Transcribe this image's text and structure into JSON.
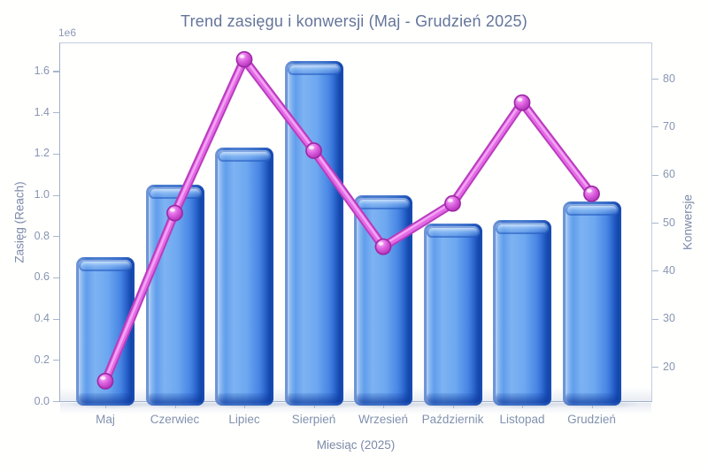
{
  "title": "Trend zasięgu i konwersji (Maj - Grudzień 2025)",
  "axes": {
    "x_label": "Miesiąc (2025)",
    "y_left_label": "Zasięg (Reach)",
    "y_left_offset": "1e6",
    "y_right_label": "Konwersje",
    "y_left_ticks": [
      "0.0",
      "0.2",
      "0.4",
      "0.6",
      "0.8",
      "1.0",
      "1.2",
      "1.4",
      "1.6"
    ],
    "y_right_ticks": [
      "20",
      "30",
      "40",
      "50",
      "60",
      "70",
      "80"
    ]
  },
  "chart_data": {
    "type": "bar",
    "subtype": "bar-and-line-combo",
    "title": "Trend zasięgu i konwersji (Maj - Grudzień 2025)",
    "xlabel": "Miesiąc (2025)",
    "ylabel_left": "Zasięg (Reach)",
    "ylabel_right": "Konwersje",
    "categories": [
      "Maj",
      "Czerwiec",
      "Lipiec",
      "Sierpień",
      "Wrzesień",
      "Październik",
      "Listopad",
      "Grudzień"
    ],
    "series": [
      {
        "name": "Zasięg (Reach)",
        "type": "bar",
        "axis": "left",
        "values": [
          700000,
          1050000,
          1230000,
          1650000,
          1000000,
          860000,
          880000,
          970000
        ]
      },
      {
        "name": "Konwersje",
        "type": "line",
        "axis": "right",
        "values": [
          17,
          52,
          84,
          65,
          45,
          54,
          75,
          56
        ]
      }
    ],
    "ylim_left": [
      0,
      1740000
    ],
    "ylim_right": [
      12.5,
      87.5
    ],
    "y_left_tick_values": [
      0,
      200000,
      400000,
      600000,
      800000,
      1000000,
      1200000,
      1400000,
      1600000
    ],
    "y_right_tick_values": [
      20,
      30,
      40,
      50,
      60,
      70,
      80
    ],
    "grid": false,
    "legend": "none"
  },
  "colors": {
    "background": "#ffffff",
    "bar_main": "#5b96e9",
    "bar_edge": "#1a52ba",
    "bar_highlight": "#c3ddfa",
    "line_core": "#e468e6",
    "line_edge": "#b93cbd",
    "marker_fill": "#cf45d2",
    "text": "#7c8aa8",
    "axis_frame": "#c2cddd"
  }
}
